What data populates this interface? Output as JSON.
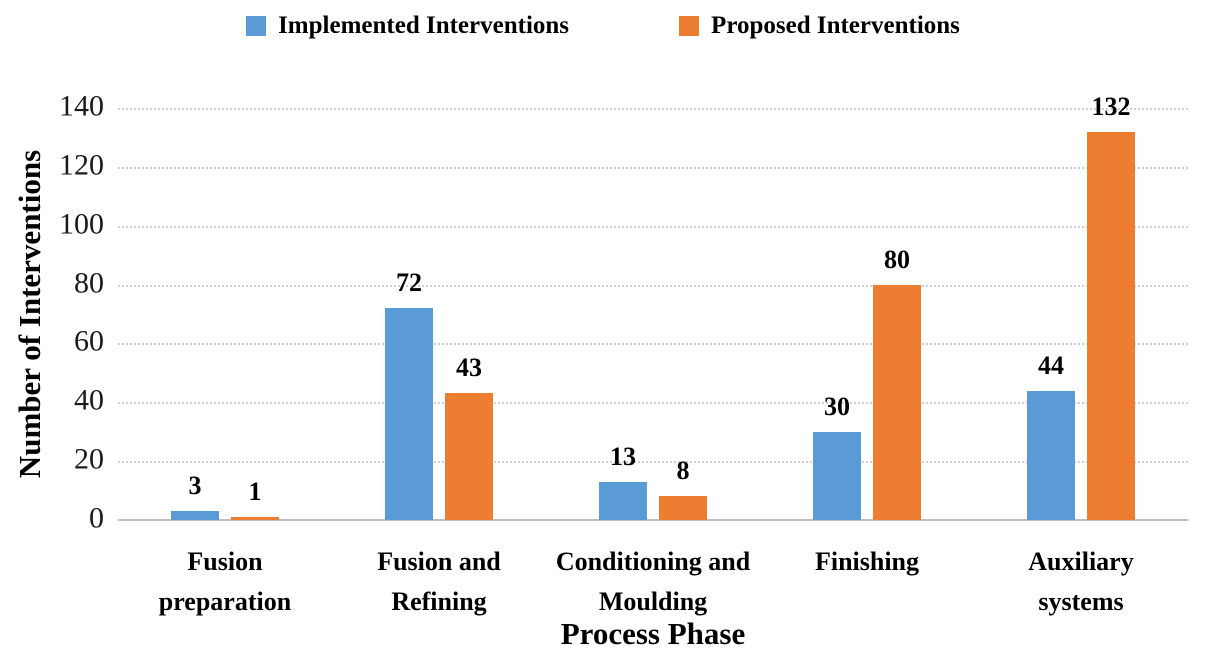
{
  "chart_data": {
    "type": "bar",
    "title": "",
    "categories": [
      "Fusion preparation",
      "Fusion and Refining",
      "Conditioning and Moulding",
      "Finishing",
      "Auxiliary systems"
    ],
    "category_label_lines": [
      [
        "Fusion",
        "preparation"
      ],
      [
        "Fusion and",
        "Refining"
      ],
      [
        "Conditioning and",
        "Moulding"
      ],
      [
        "Finishing"
      ],
      [
        "Auxiliary",
        "systems"
      ]
    ],
    "series": [
      {
        "name": "Implemented Interventions",
        "color": "#5B9BD5",
        "values": [
          3,
          72,
          13,
          30,
          44
        ]
      },
      {
        "name": "Proposed Interventions",
        "color": "#ED7D31",
        "values": [
          1,
          43,
          8,
          80,
          132
        ]
      }
    ],
    "xlabel": "Process Phase",
    "ylabel": "Number of Interventions",
    "ylim": [
      0,
      140
    ],
    "yticks": [
      0,
      20,
      40,
      60,
      80,
      100,
      120,
      140
    ],
    "grid": true,
    "legend_position": "top",
    "data_labels": true
  },
  "colors": {
    "background": "#FFFFFF",
    "gridline": "#D0D0D0",
    "axis_line": "#BFBFBF",
    "text": "#000000"
  }
}
